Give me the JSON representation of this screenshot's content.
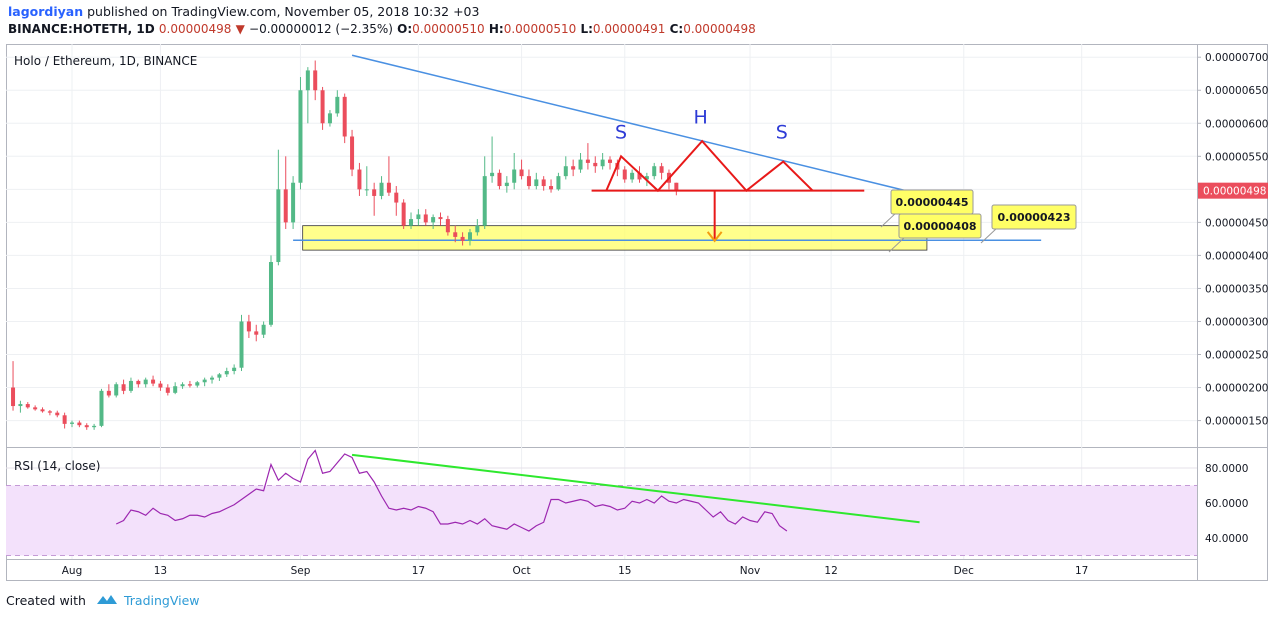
{
  "header": {
    "author": "lagordiyan",
    "published_text": "published on TradingView.com, November 05, 2018 10:32 +03",
    "symbol": "BINANCE:HOTETH, 1D",
    "last": "0.00000498",
    "change": "−0.00000012 (−2.35%)",
    "o_label": "O:",
    "o_value": "0.00000510",
    "h_label": "H:",
    "h_value": "0.00000510",
    "l_label": "L:",
    "l_value": "0.00000491",
    "c_label": "C:",
    "c_value": "0.00000498"
  },
  "footer": {
    "created_with": "Created with",
    "brand": "TradingView"
  },
  "colors": {
    "up": "#53b987",
    "down": "#eb4d5c",
    "trend_blue": "#4a90e2",
    "rsi_line": "#9c27b0",
    "rsi_band": "#f3e1fb",
    "rsi_trend": "#2ee82e",
    "pattern": "#e81919",
    "zone": "#ffff66",
    "arrow": "#f39c12"
  },
  "chart_data": [
    {
      "type": "candlestick",
      "title": "Holo / Ethereum, 1D, BINANCE",
      "ylim": [
        1.1e-06,
        7.2e-06
      ],
      "y_ticks": [
        "0.00000150",
        "0.00000200",
        "0.00000250",
        "0.00000300",
        "0.00000350",
        "0.00000400",
        "0.00000450",
        "0.00000500",
        "0.00000550",
        "0.00000600",
        "0.00000650",
        "0.00000700"
      ],
      "x_ticks": [
        "Aug",
        "13",
        "Sep",
        "17",
        "Oct",
        "15",
        "Nov",
        "12",
        "Dec",
        "17"
      ],
      "x_tick_days": [
        0,
        12,
        31,
        47,
        61,
        75,
        92,
        103,
        121,
        137
      ],
      "first_day_offset": -8,
      "candles": [
        [
          2e-06,
          2.4e-06,
          1.65e-06,
          1.72e-06
        ],
        [
          1.72e-06,
          1.8e-06,
          1.62e-06,
          1.75e-06
        ],
        [
          1.75e-06,
          1.78e-06,
          1.68e-06,
          1.7e-06
        ],
        [
          1.7e-06,
          1.73e-06,
          1.65e-06,
          1.67e-06
        ],
        [
          1.67e-06,
          1.7e-06,
          1.62e-06,
          1.64e-06
        ],
        [
          1.64e-06,
          1.66e-06,
          1.58e-06,
          1.62e-06
        ],
        [
          1.62e-06,
          1.65e-06,
          1.55e-06,
          1.58e-06
        ],
        [
          1.58e-06,
          1.62e-06,
          1.38e-06,
          1.45e-06
        ],
        [
          1.45e-06,
          1.5e-06,
          1.4e-06,
          1.47e-06
        ],
        [
          1.47e-06,
          1.5e-06,
          1.4e-06,
          1.43e-06
        ],
        [
          1.43e-06,
          1.46e-06,
          1.36e-06,
          1.4e-06
        ],
        [
          1.4e-06,
          1.45e-06,
          1.36e-06,
          1.42e-06
        ],
        [
          1.42e-06,
          1.98e-06,
          1.4e-06,
          1.95e-06
        ],
        [
          1.95e-06,
          2.05e-06,
          1.85e-06,
          1.88e-06
        ],
        [
          1.88e-06,
          2.08e-06,
          1.85e-06,
          2.05e-06
        ],
        [
          2.05e-06,
          2.12e-06,
          1.9e-06,
          1.95e-06
        ],
        [
          1.95e-06,
          2.15e-06,
          1.92e-06,
          2.1e-06
        ],
        [
          2.1e-06,
          2.12e-06,
          2e-06,
          2.05e-06
        ],
        [
          2.05e-06,
          2.15e-06,
          2e-06,
          2.12e-06
        ],
        [
          2.12e-06,
          2.18e-06,
          2.02e-06,
          2.06e-06
        ],
        [
          2.06e-06,
          2.1e-06,
          1.95e-06,
          2e-06
        ],
        [
          2e-06,
          2.05e-06,
          1.88e-06,
          1.92e-06
        ],
        [
          1.92e-06,
          2.08e-06,
          1.9e-06,
          2.02e-06
        ],
        [
          2.02e-06,
          2.08e-06,
          1.98e-06,
          2.05e-06
        ],
        [
          2.05e-06,
          2.1e-06,
          2e-06,
          2.03e-06
        ],
        [
          2.03e-06,
          2.1e-06,
          2e-06,
          2.08e-06
        ],
        [
          2.08e-06,
          2.15e-06,
          2.02e-06,
          2.12e-06
        ],
        [
          2.12e-06,
          2.18e-06,
          2.06e-06,
          2.15e-06
        ],
        [
          2.15e-06,
          2.22e-06,
          2.1e-06,
          2.2e-06
        ],
        [
          2.2e-06,
          2.3e-06,
          2.16e-06,
          2.25e-06
        ],
        [
          2.25e-06,
          2.35e-06,
          2.2e-06,
          2.3e-06
        ],
        [
          2.3e-06,
          3.1e-06,
          2.25e-06,
          3e-06
        ],
        [
          3e-06,
          3.1e-06,
          2.75e-06,
          2.85e-06
        ],
        [
          2.85e-06,
          2.95e-06,
          2.7e-06,
          2.8e-06
        ],
        [
          2.8e-06,
          3e-06,
          2.75e-06,
          2.95e-06
        ],
        [
          2.95e-06,
          4e-06,
          2.92e-06,
          3.9e-06
        ],
        [
          3.9e-06,
          5.6e-06,
          3.85e-06,
          5e-06
        ],
        [
          5e-06,
          5.5e-06,
          4.4e-06,
          4.5e-06
        ],
        [
          4.5e-06,
          5.2e-06,
          4.4e-06,
          5.1e-06
        ],
        [
          5.1e-06,
          6.7e-06,
          5e-06,
          6.5e-06
        ],
        [
          6.5e-06,
          6.85e-06,
          6e-06,
          6.8e-06
        ],
        [
          6.8e-06,
          6.95e-06,
          6.35e-06,
          6.5e-06
        ],
        [
          6.5e-06,
          6.55e-06,
          5.9e-06,
          6e-06
        ],
        [
          6e-06,
          6.2e-06,
          5.95e-06,
          6.15e-06
        ],
        [
          6.15e-06,
          6.5e-06,
          6.1e-06,
          6.4e-06
        ],
        [
          6.4e-06,
          6.45e-06,
          5.7e-06,
          5.8e-06
        ],
        [
          5.8e-06,
          5.9e-06,
          5.2e-06,
          5.3e-06
        ],
        [
          5.3e-06,
          5.4e-06,
          4.9e-06,
          5e-06
        ],
        [
          5e-06,
          5.35e-06,
          4.9e-06,
          5e-06
        ],
        [
          5e-06,
          5.1e-06,
          4.6e-06,
          4.9e-06
        ],
        [
          4.9e-06,
          5.2e-06,
          4.85e-06,
          5.1e-06
        ],
        [
          5.1e-06,
          5.5e-06,
          4.9e-06,
          4.95e-06
        ],
        [
          4.95e-06,
          5.05e-06,
          4.6e-06,
          4.8e-06
        ],
        [
          4.8e-06,
          4.85e-06,
          4.4e-06,
          4.45e-06
        ],
        [
          4.45e-06,
          4.65e-06,
          4.4e-06,
          4.55e-06
        ],
        [
          4.55e-06,
          4.7e-06,
          4.45e-06,
          4.62e-06
        ],
        [
          4.62e-06,
          4.7e-06,
          4.45e-06,
          4.5e-06
        ],
        [
          4.5e-06,
          4.62e-06,
          4.4e-06,
          4.58e-06
        ],
        [
          4.58e-06,
          4.65e-06,
          4.45e-06,
          4.55e-06
        ],
        [
          4.55e-06,
          4.6e-06,
          4.3e-06,
          4.35e-06
        ],
        [
          4.35e-06,
          4.45e-06,
          4.2e-06,
          4.28e-06
        ],
        [
          4.28e-06,
          4.35e-06,
          4.15e-06,
          4.22e-06
        ],
        [
          4.22e-06,
          4.4e-06,
          4.15e-06,
          4.35e-06
        ],
        [
          4.35e-06,
          4.55e-06,
          4.3e-06,
          4.45e-06
        ],
        [
          4.45e-06,
          5.5e-06,
          4.4e-06,
          5.2e-06
        ],
        [
          5.2e-06,
          5.8e-06,
          5.1e-06,
          5.25e-06
        ],
        [
          5.25e-06,
          5.3e-06,
          5e-06,
          5.05e-06
        ],
        [
          5.05e-06,
          5.2e-06,
          4.95e-06,
          5.1e-06
        ],
        [
          5.1e-06,
          5.55e-06,
          5e-06,
          5.3e-06
        ],
        [
          5.3e-06,
          5.45e-06,
          5.15e-06,
          5.2e-06
        ],
        [
          5.2e-06,
          5.3e-06,
          5e-06,
          5.05e-06
        ],
        [
          5.05e-06,
          5.25e-06,
          5e-06,
          5.15e-06
        ],
        [
          5.15e-06,
          5.2e-06,
          4.98e-06,
          5.05e-06
        ],
        [
          5.05e-06,
          5.15e-06,
          4.95e-06,
          5e-06
        ],
        [
          5e-06,
          5.25e-06,
          4.98e-06,
          5.2e-06
        ],
        [
          5.2e-06,
          5.5e-06,
          5.15e-06,
          5.35e-06
        ],
        [
          5.35e-06,
          5.45e-06,
          5.2e-06,
          5.3e-06
        ],
        [
          5.3e-06,
          5.55e-06,
          5.25e-06,
          5.45e-06
        ],
        [
          5.45e-06,
          5.7e-06,
          5.3e-06,
          5.4e-06
        ],
        [
          5.4e-06,
          5.5e-06,
          5.25e-06,
          5.35e-06
        ],
        [
          5.35e-06,
          5.55e-06,
          5.3e-06,
          5.45e-06
        ],
        [
          5.45e-06,
          5.5e-06,
          5.3e-06,
          5.4e-06
        ],
        [
          5.4e-06,
          5.45e-06,
          5.2e-06,
          5.3e-06
        ],
        [
          5.3e-06,
          5.35e-06,
          5.1e-06,
          5.15e-06
        ],
        [
          5.15e-06,
          5.3e-06,
          5.1e-06,
          5.25e-06
        ],
        [
          5.25e-06,
          5.35e-06,
          5.1e-06,
          5.15e-06
        ],
        [
          5.15e-06,
          5.25e-06,
          5.05e-06,
          5.2e-06
        ],
        [
          5.2e-06,
          5.4e-06,
          5.15e-06,
          5.35e-06
        ],
        [
          5.35e-06,
          5.4e-06,
          5.15e-06,
          5.25e-06
        ],
        [
          5.25e-06,
          5.3e-06,
          5e-06,
          5.1e-06
        ],
        [
          5.1e-06,
          5.1e-06,
          4.91e-06,
          4.98e-06
        ]
      ],
      "current_price_label": "0.00000498",
      "annotations": {
        "head_shoulders": [
          "S",
          "H",
          "S"
        ],
        "callouts": [
          "0.00000445",
          "0.00000408",
          "0.00000423"
        ],
        "zone": [
          4.08e-06,
          4.45e-06
        ],
        "support": 4.23e-06,
        "neckline": 4.98e-06
      }
    },
    {
      "type": "line",
      "title": "RSI (14, close)",
      "ylim": [
        28,
        92
      ],
      "y_ticks": [
        "40.0000",
        "60.0000",
        "80.0000"
      ],
      "band": [
        30,
        70
      ],
      "first_day_offset": 6,
      "values": [
        48,
        50,
        56,
        55,
        53,
        57,
        54,
        53,
        50,
        51,
        53,
        53,
        52,
        54,
        55,
        57,
        59,
        62,
        65,
        68,
        67,
        82,
        73,
        77,
        74,
        72,
        85,
        90,
        77,
        78,
        83,
        88,
        86,
        77,
        78,
        72,
        64,
        57,
        56,
        57,
        56,
        58,
        57,
        55,
        48,
        48,
        49,
        48,
        50,
        48,
        51,
        47,
        46,
        45,
        48,
        46,
        44,
        47,
        49,
        62,
        62,
        60,
        61,
        62,
        61,
        58,
        59,
        58,
        56,
        57,
        61,
        60,
        62,
        60,
        64,
        61,
        60,
        62,
        61,
        60,
        56,
        52,
        55,
        50,
        48,
        52,
        50,
        49,
        55,
        54,
        47,
        44
      ]
    }
  ]
}
